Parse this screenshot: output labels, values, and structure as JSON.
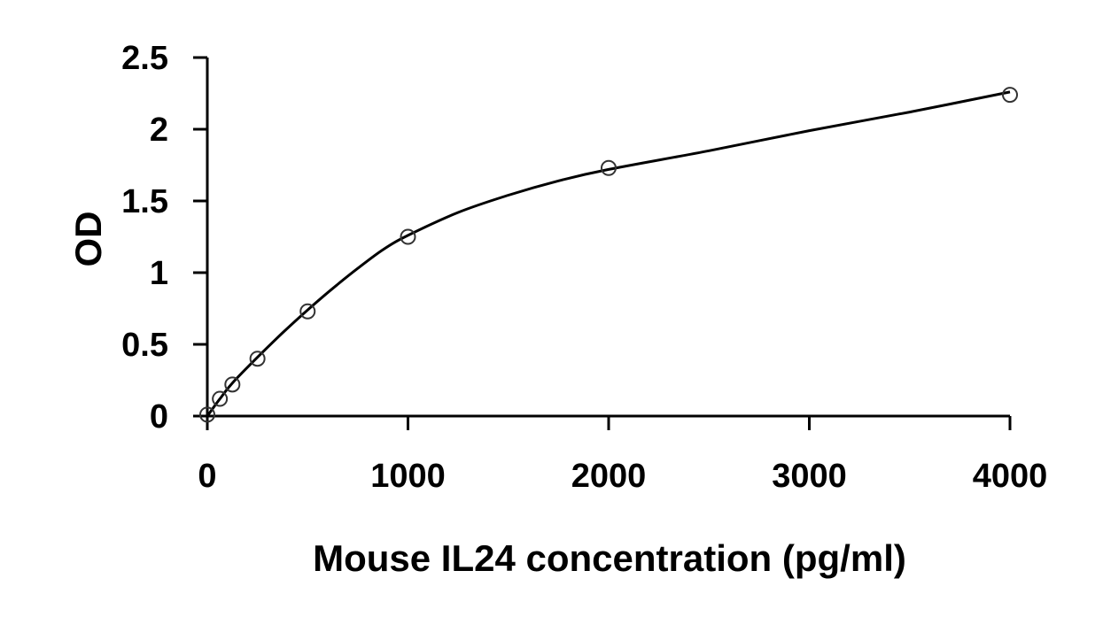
{
  "chart_data": {
    "type": "scatter",
    "title": "",
    "xlabel": "Mouse IL24 concentration (pg/ml)",
    "ylabel": "OD",
    "xlim": [
      0,
      4000
    ],
    "ylim": [
      0,
      2.5
    ],
    "x_ticks": [
      0,
      1000,
      2000,
      3000,
      4000
    ],
    "x_tick_labels": [
      "0",
      "1000",
      "2000",
      "3000",
      "4000"
    ],
    "y_ticks": [
      0,
      0.5,
      1,
      1.5,
      2,
      2.5
    ],
    "y_tick_labels": [
      "0",
      "0.5",
      "1",
      "1.5",
      "2",
      "2.5"
    ],
    "grid": false,
    "legend": "none",
    "series": [
      {
        "marker": "open-circle",
        "x": [
          0,
          62.5,
          125,
          250,
          500,
          1000,
          2000,
          4000
        ],
        "y": [
          0.01,
          0.12,
          0.22,
          0.4,
          0.73,
          1.25,
          1.73,
          2.24
        ]
      }
    ],
    "fit_curve": {
      "x": [
        0,
        62.5,
        125,
        250,
        375,
        500,
        625,
        750,
        875,
        1000,
        1250,
        1500,
        1750,
        2000,
        2500,
        3000,
        3500,
        4000
      ],
      "y": [
        0.0,
        0.12,
        0.23,
        0.41,
        0.58,
        0.74,
        0.89,
        1.03,
        1.16,
        1.26,
        1.42,
        1.54,
        1.64,
        1.72,
        1.85,
        1.99,
        2.12,
        2.26
      ]
    },
    "colors": {
      "line": "#000000",
      "marker_stroke": "#333333",
      "text": "#000000"
    }
  }
}
